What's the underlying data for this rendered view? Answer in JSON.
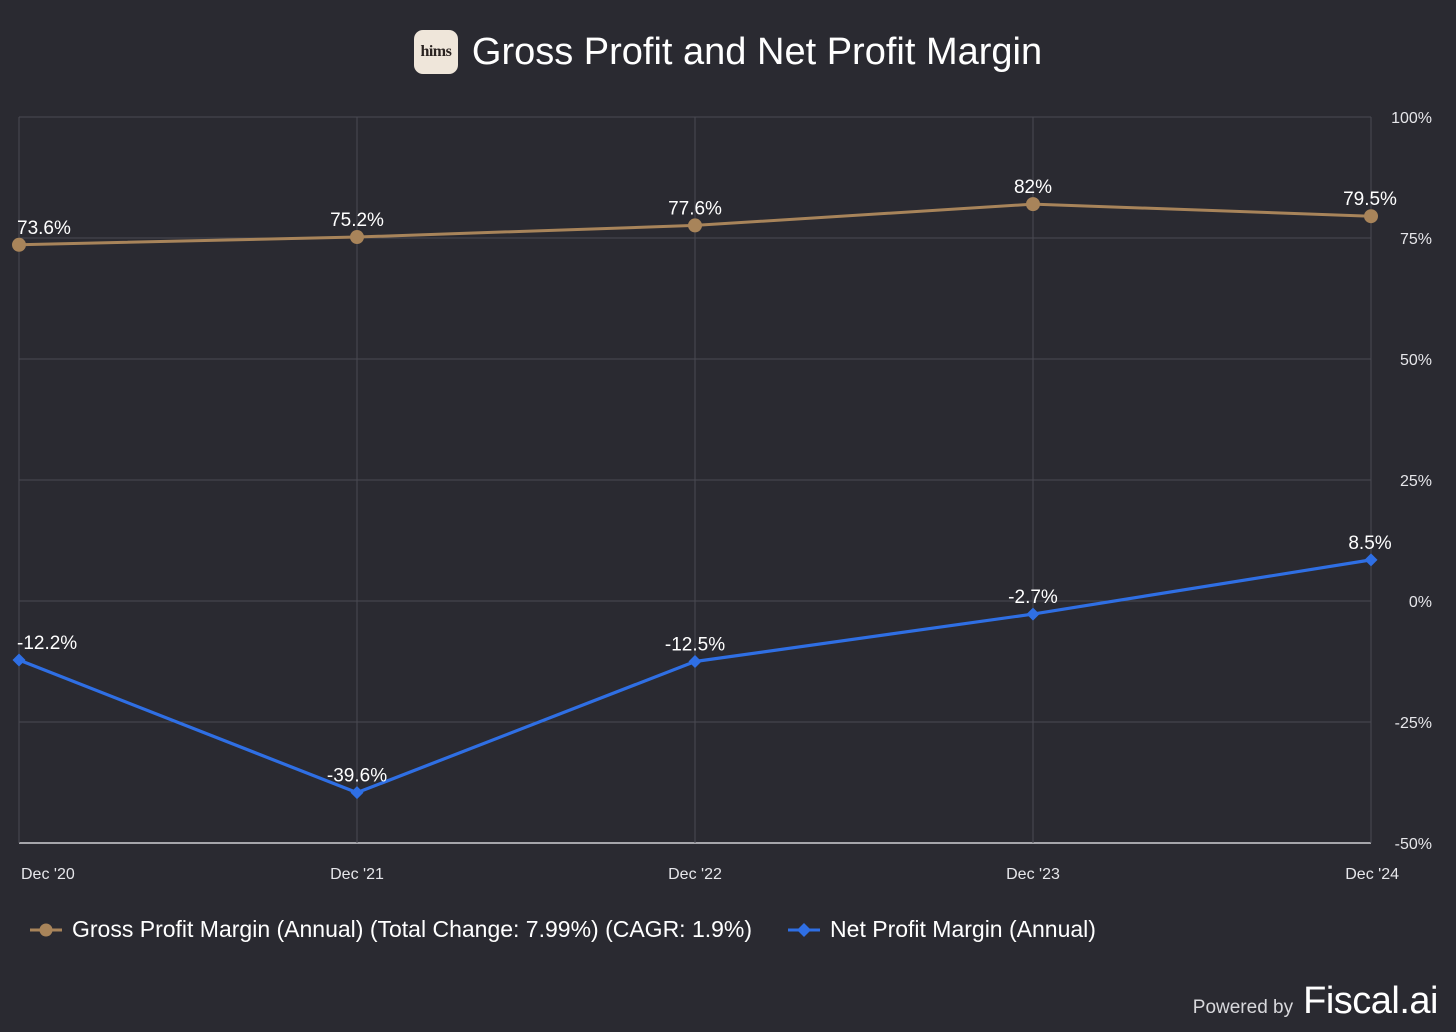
{
  "header": {
    "logo_text": "hims",
    "title": "Gross Profit and Net Profit Margin"
  },
  "footer": {
    "powered_by": "Powered by",
    "brand": "Fiscal.ai"
  },
  "colors": {
    "background": "#2a2a31",
    "gross": "#a8845a",
    "net": "#2f6fe4",
    "grid": "#4a4a52"
  },
  "chart_data": {
    "type": "line",
    "title": "Gross Profit and Net Profit Margin",
    "categories": [
      "Dec '20",
      "Dec '21",
      "Dec '22",
      "Dec '23",
      "Dec '24"
    ],
    "y_ticks": [
      "100%",
      "75%",
      "50%",
      "25%",
      "0%",
      "-25%",
      "-50%"
    ],
    "y_tick_values": [
      100,
      75,
      50,
      25,
      0,
      -25,
      -50
    ],
    "ylim": [
      -50,
      100
    ],
    "grid": true,
    "legend_position": "bottom",
    "series": [
      {
        "name": "Gross Profit Margin (Annual) (Total Change: 7.99%) (CAGR: 1.9%)",
        "values": [
          73.6,
          75.2,
          77.6,
          82,
          79.5
        ],
        "labels": [
          "73.6%",
          "75.2%",
          "77.6%",
          "82%",
          "79.5%"
        ],
        "marker": "circle",
        "color": "#a8845a"
      },
      {
        "name": "Net Profit Margin (Annual)",
        "values": [
          -12.2,
          -39.6,
          -12.5,
          -2.7,
          8.5
        ],
        "labels": [
          "-12.2%",
          "-39.6%",
          "-12.5%",
          "-2.7%",
          "8.5%"
        ],
        "marker": "diamond",
        "color": "#2f6fe4"
      }
    ]
  }
}
